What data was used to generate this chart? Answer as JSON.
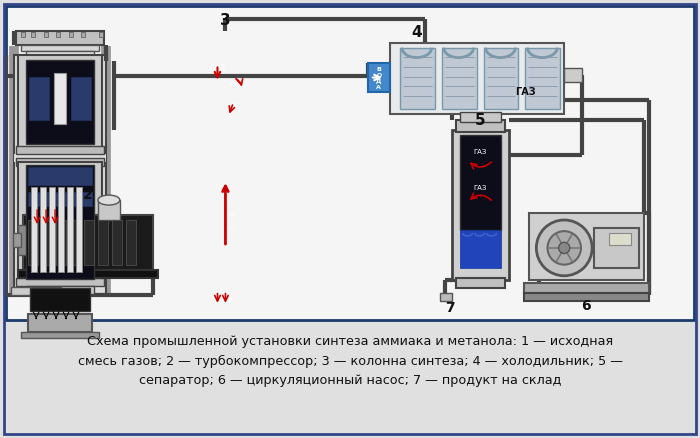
{
  "caption_line1": "Схема промышленной установки синтеза аммиака и метанола: 1 — исходная",
  "caption_line2": "смесь газов; 2 — турбокомпрессор; 3 — колонна синтеза; 4 — холодильник; 5 —",
  "caption_line3": "сепаратор; 6 — циркуляционный насос; 7 — продукт на склад",
  "bg_color": "#ffffff",
  "border_color": "#2255aa",
  "panel_bg": "#f8f8f8",
  "pipe_color": "#555555",
  "dark_inner": "#111111",
  "catalyst_blue": "#334488",
  "sep_blue": "#3355cc",
  "arrow_red": "#cc0000",
  "metal_light": "#cccccc",
  "metal_dark": "#888888",
  "cooler_tube": "#aabbcc"
}
